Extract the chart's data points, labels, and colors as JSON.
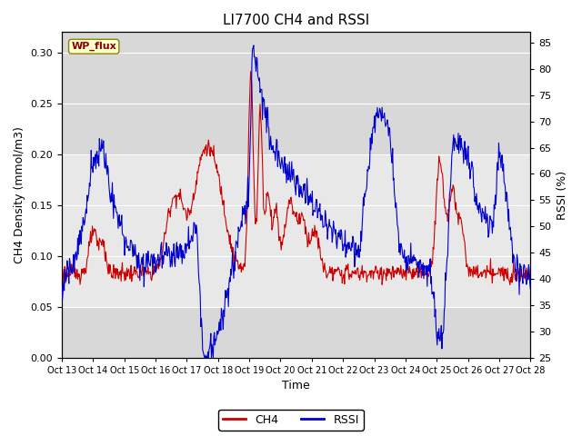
{
  "title": "LI7700 CH4 and RSSI",
  "xlabel": "Time",
  "ylabel_left": "CH4 Density (mmol/m3)",
  "ylabel_right": "RSSI (%)",
  "xlim": [
    0,
    15
  ],
  "ylim_left": [
    0.0,
    0.32
  ],
  "ylim_right": [
    25,
    87
  ],
  "yticks_left": [
    0.0,
    0.05,
    0.1,
    0.15,
    0.2,
    0.25,
    0.3
  ],
  "yticks_right": [
    25,
    30,
    35,
    40,
    45,
    50,
    55,
    60,
    65,
    70,
    75,
    80,
    85
  ],
  "xtick_labels": [
    "Oct 13",
    "Oct 14",
    "Oct 15",
    "Oct 16",
    "Oct 17",
    "Oct 18",
    "Oct 19",
    "Oct 20",
    "Oct 21",
    "Oct 22",
    "Oct 23",
    "Oct 24",
    "Oct 25",
    "Oct 26",
    "Oct 27",
    "Oct 28"
  ],
  "ch4_color": "#cc0000",
  "rssi_color": "#0000cc",
  "background_color": "#ffffff",
  "plot_bg_outer": "#d8d8d8",
  "plot_bg_inner": "#e8e8e8",
  "band_lo_ch4": 0.05,
  "band_hi_ch4": 0.2,
  "band_lo_rssi": 35,
  "band_hi_rssi": 65,
  "wp_flux_label": "WP_flux",
  "wp_flux_bg": "#ffffcc",
  "wp_flux_border": "#888800",
  "wp_flux_text_color": "#880000",
  "legend_ch4": "CH4",
  "legend_rssi": "RSSI",
  "title_fontsize": 11,
  "axis_fontsize": 9,
  "tick_fontsize": 8
}
